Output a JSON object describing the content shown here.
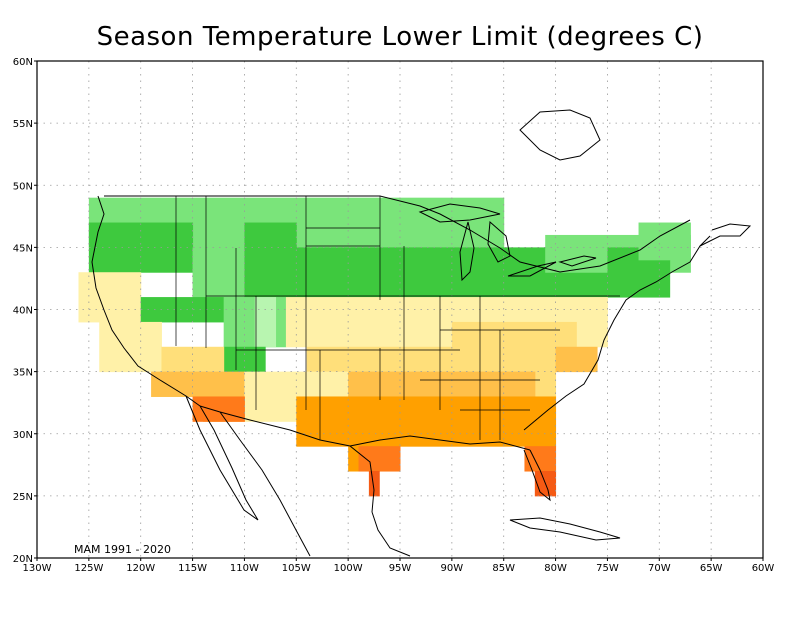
{
  "title": "Season Temperature Lower Limit (degrees C)",
  "period_label": "MAM 1991 - 2020",
  "lon_ticks": [
    "130W",
    "125W",
    "120W",
    "115W",
    "110W",
    "105W",
    "100W",
    "95W",
    "90W",
    "85W",
    "80W",
    "75W",
    "70W",
    "65W",
    "60W"
  ],
  "lat_ticks": [
    "60N",
    "55N",
    "50N",
    "45N",
    "40N",
    "35N",
    "30N",
    "25N",
    "20N"
  ],
  "extent": {
    "lon_min": -130,
    "lon_max": -60,
    "lat_min": 20,
    "lat_max": 60
  },
  "colors": {
    "dark_green": "#3ec93e",
    "green": "#7ae47a",
    "light_green": "#b8f5b0",
    "pale_yellow": "#fff1a8",
    "light_orange": "#ffdf7a",
    "orange_light": "#ffc04a",
    "orange": "#ffa000",
    "orange_dark": "#ff7a1a",
    "red_orange": "#f55a14",
    "grid": "#9a9a9a",
    "coast": "#000000"
  }
}
